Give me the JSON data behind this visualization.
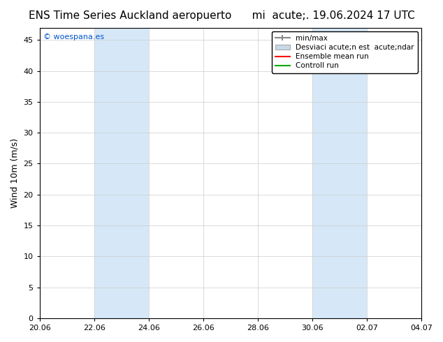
{
  "title": "ENS Time Series Auckland aeropuerto",
  "subtitle": "mi  acute;. 19.06.2024 17 UTC",
  "ylabel": "Wind 10m (m/s)",
  "ylim": [
    0,
    47
  ],
  "yticks": [
    0,
    5,
    10,
    15,
    20,
    25,
    30,
    35,
    40,
    45
  ],
  "xlim_start": 0,
  "xlim_end": 14,
  "xtick_labels": [
    "20.06",
    "22.06",
    "24.06",
    "26.06",
    "28.06",
    "30.06",
    "02.07",
    "04.07"
  ],
  "xtick_positions": [
    0,
    2,
    4,
    6,
    8,
    10,
    12,
    14
  ],
  "shaded_regions": [
    {
      "xmin": 2.0,
      "xmax": 4.0
    },
    {
      "xmin": 10.0,
      "xmax": 12.0
    }
  ],
  "shaded_color": "#d6e8f7",
  "watermark_text": "© woespana.es",
  "watermark_color": "#0055cc",
  "legend_labels": [
    "min/max",
    "Desviaci acute;n est  acute;ndar",
    "Ensemble mean run",
    "Controll run"
  ],
  "legend_colors": [
    "#c0c0c0",
    "#c8d8e8",
    "#ff0000",
    "#00aa00"
  ],
  "background_color": "#ffffff",
  "plot_bg_color": "#ffffff",
  "title_color": "#000000",
  "title_fontsize": 11,
  "subtitle_fontsize": 11,
  "axis_fontsize": 9,
  "tick_fontsize": 8
}
